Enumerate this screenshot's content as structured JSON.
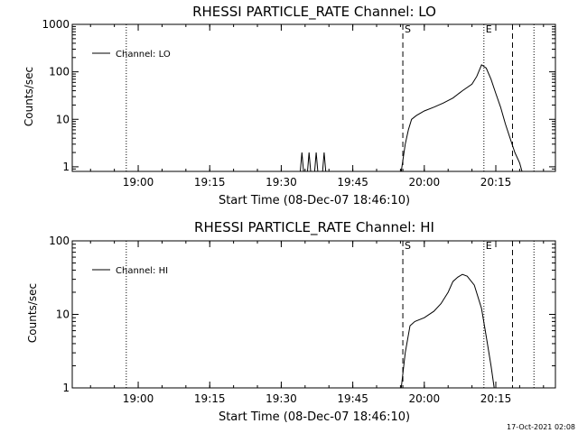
{
  "timestamp": "17-Oct-2021 02:08",
  "chart_data": [
    {
      "type": "line",
      "title": "RHESSI PARTICLE_RATE Channel: LO",
      "xlabel": "Start Time (08-Dec-07 18:46:10)",
      "ylabel": "Counts/sec",
      "xlim": [
        "18:46:10",
        "20:27:30"
      ],
      "ylim": [
        0.8,
        1000
      ],
      "yscale": "log",
      "xticks": [
        "19:00",
        "19:15",
        "19:30",
        "19:45",
        "20:00",
        "20:15"
      ],
      "yticks": [
        "1",
        "10",
        "100",
        "1000"
      ],
      "legend": {
        "position": "top-left",
        "entries": [
          "Channel: LO"
        ]
      },
      "markers": [
        {
          "label": "S",
          "time": "19:55:30",
          "style": "dashed"
        },
        {
          "label": "E",
          "time": "20:12:30",
          "style": "dotted"
        }
      ],
      "vlines": [
        {
          "time": "18:57:30",
          "style": "dotted"
        },
        {
          "time": "19:55:30",
          "style": "dashed"
        },
        {
          "time": "20:12:30",
          "style": "dotted"
        },
        {
          "time": "20:18:30",
          "style": "dashed"
        },
        {
          "time": "20:23:00",
          "style": "dotted"
        }
      ],
      "series": [
        {
          "name": "Channel: LO",
          "x": [
            "19:34:00",
            "19:34:20",
            "19:34:40",
            "19:35:30",
            "19:35:50",
            "19:36:10",
            "19:37:00",
            "19:37:20",
            "19:37:40",
            "19:38:40",
            "19:39:00",
            "19:39:20",
            "19:55:10",
            "19:56:00",
            "19:56:40",
            "19:57:20",
            "19:58:20",
            "20:00:00",
            "20:02:00",
            "20:04:00",
            "20:06:00",
            "20:08:00",
            "20:10:00",
            "20:11:00",
            "20:12:00",
            "20:13:00",
            "20:14:00",
            "20:15:00",
            "20:16:00",
            "20:17:00",
            "20:18:00",
            "20:19:00",
            "20:20:00",
            "20:20:30"
          ],
          "y": [
            0.8,
            2,
            0.8,
            0.8,
            2,
            0.8,
            0.8,
            2,
            0.8,
            0.8,
            2,
            0.8,
            0.8,
            3,
            6,
            10,
            12,
            15,
            18,
            22,
            28,
            40,
            55,
            80,
            140,
            120,
            70,
            35,
            18,
            8,
            4,
            2,
            1.2,
            0.8
          ]
        }
      ]
    },
    {
      "type": "line",
      "title": "RHESSI PARTICLE_RATE Channel: HI",
      "xlabel": "Start Time (08-Dec-07 18:46:10)",
      "ylabel": "Counts/sec",
      "xlim": [
        "18:46:10",
        "20:27:30"
      ],
      "ylim": [
        1,
        100
      ],
      "yscale": "log",
      "xticks": [
        "19:00",
        "19:15",
        "19:30",
        "19:45",
        "20:00",
        "20:15"
      ],
      "yticks": [
        "1",
        "10",
        "100"
      ],
      "legend": {
        "position": "top-left",
        "entries": [
          "Channel: HI"
        ]
      },
      "markers": [
        {
          "label": "S",
          "time": "19:55:30",
          "style": "dashed"
        },
        {
          "label": "E",
          "time": "20:12:30",
          "style": "dotted"
        }
      ],
      "vlines": [
        {
          "time": "18:57:30",
          "style": "dotted"
        },
        {
          "time": "19:55:30",
          "style": "dashed"
        },
        {
          "time": "20:12:30",
          "style": "dotted"
        },
        {
          "time": "20:18:30",
          "style": "dashed"
        },
        {
          "time": "20:23:00",
          "style": "dotted"
        }
      ],
      "series": [
        {
          "name": "Channel: HI",
          "x": [
            "19:55:10",
            "19:56:00",
            "19:57:00",
            "19:58:00",
            "20:00:00",
            "20:02:00",
            "20:03:30",
            "20:05:00",
            "20:06:00",
            "20:07:00",
            "20:08:00",
            "20:09:00",
            "20:10:30",
            "20:12:00",
            "20:13:00",
            "20:14:00",
            "20:14:40"
          ],
          "y": [
            1,
            3,
            7,
            8,
            9,
            11,
            14,
            20,
            28,
            32,
            35,
            33,
            25,
            12,
            5,
            2,
            1
          ]
        }
      ]
    }
  ]
}
